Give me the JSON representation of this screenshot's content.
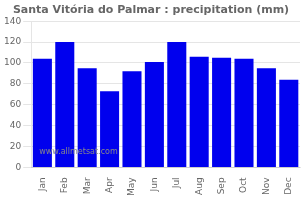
{
  "chart_data": {
    "type": "bar",
    "title": "Santa Vitória do Palmar : precipitation (mm)",
    "categories": [
      "Jan",
      "Feb",
      "Mar",
      "Apr",
      "May",
      "Jun",
      "Jul",
      "Aug",
      "Sep",
      "Oct",
      "Nov",
      "Dec"
    ],
    "values": [
      104,
      120,
      95,
      73,
      92,
      101,
      120,
      106,
      105,
      104,
      95,
      84
    ],
    "color": "#0000ee",
    "ylim": [
      0,
      140
    ],
    "yticks": [
      0,
      20,
      40,
      60,
      80,
      100,
      120,
      140
    ],
    "grid": true,
    "annotation": "www.allmetsat.com"
  }
}
